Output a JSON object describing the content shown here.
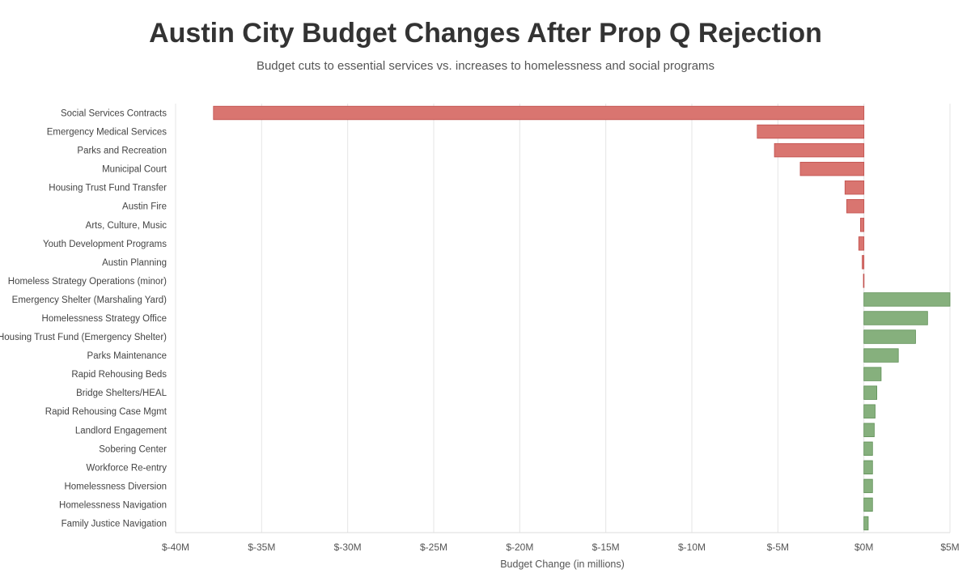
{
  "chart_data": {
    "type": "bar",
    "orientation": "horizontal",
    "title": "Austin City Budget Changes After Prop Q Rejection",
    "subtitle": "Budget cuts to essential services vs. increases to homelessness and social programs",
    "xlabel": "Budget Change (in millions)",
    "ylabel": "",
    "xlim": [
      -40,
      5
    ],
    "xticks": [
      -40,
      -35,
      -30,
      -25,
      -20,
      -15,
      -10,
      -5,
      0,
      5
    ],
    "xtick_labels": [
      "$-40M",
      "$-35M",
      "$-30M",
      "$-25M",
      "$-20M",
      "$-15M",
      "$-10M",
      "$-5M",
      "$0M",
      "$5M"
    ],
    "grid": true,
    "colors": {
      "negative": "#d97570",
      "positive": "#86b07d",
      "negative_border": "#c0504d",
      "positive_border": "#5e8f55",
      "grid": "#e5e5e5"
    },
    "categories": [
      "Social Services Contracts",
      "Emergency Medical Services",
      "Parks and Recreation",
      "Municipal Court",
      "Housing Trust Fund Transfer",
      "Austin Fire",
      "Arts, Culture, Music",
      "Youth Development Programs",
      "Austin Planning",
      "Homeless Strategy Operations (minor)",
      "Emergency Shelter (Marshaling Yard)",
      "Homelessness Strategy Office",
      "Housing Trust Fund (Emergency Shelter)",
      "Parks Maintenance",
      "Rapid Rehousing Beds",
      "Bridge Shelters/HEAL",
      "Rapid Rehousing Case Mgmt",
      "Landlord Engagement",
      "Sobering Center",
      "Workforce Re-entry",
      "Homelessness Diversion",
      "Homelessness Navigation",
      "Family Justice Navigation"
    ],
    "values": [
      -37.8,
      -6.2,
      -5.2,
      -3.7,
      -1.1,
      -1.0,
      -0.2,
      -0.3,
      -0.1,
      -0.03,
      5.0,
      3.7,
      3.0,
      2.0,
      1.0,
      0.75,
      0.65,
      0.6,
      0.5,
      0.5,
      0.5,
      0.5,
      0.25
    ]
  }
}
